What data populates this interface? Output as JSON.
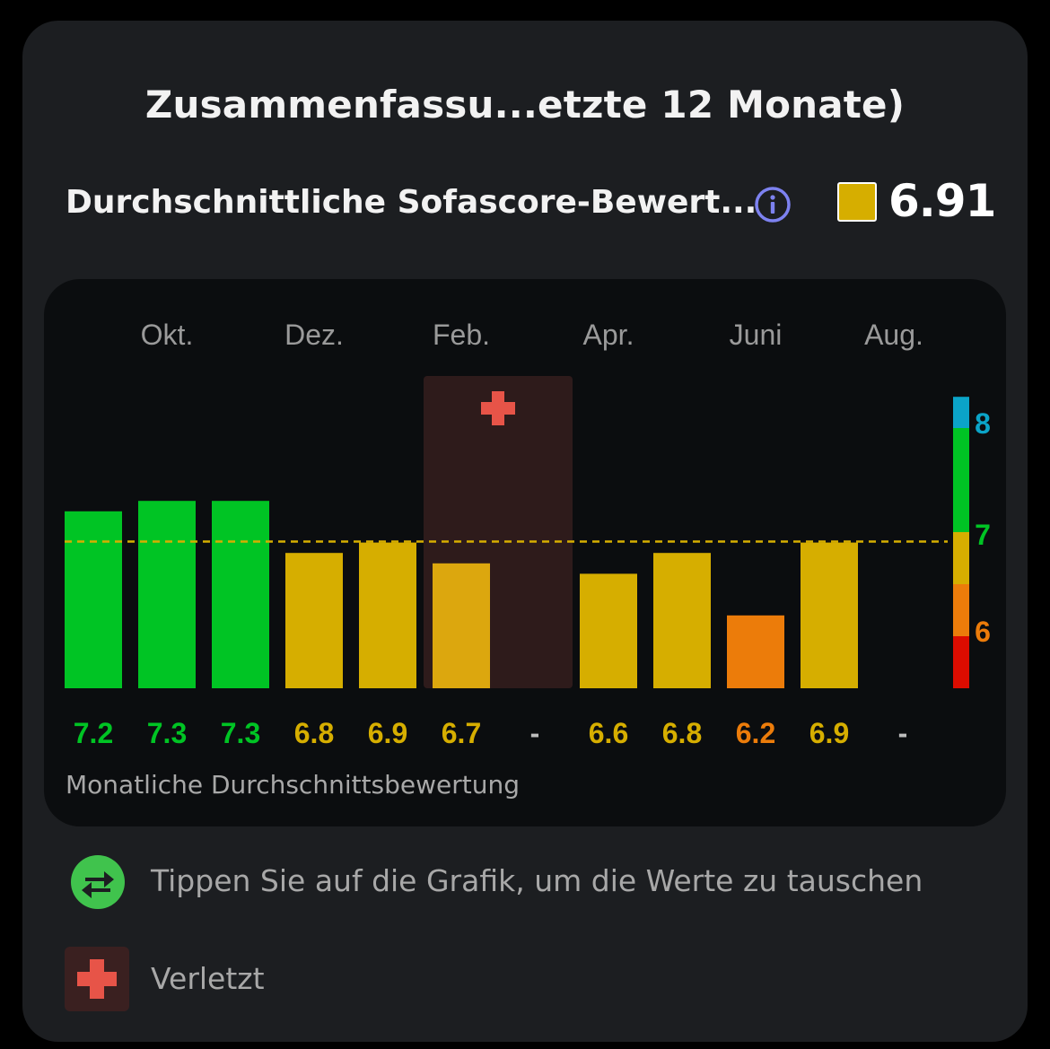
{
  "header": {
    "title": "Zusammenfassu...etzte 12 Monate)"
  },
  "summary": {
    "label": "Durchschnittliche Sofascore-Bewert...",
    "info_icon": "info-icon",
    "value": "6.91",
    "swatch_color": "#d6ae00"
  },
  "chart_data": {
    "type": "bar",
    "months": [
      "Okt.",
      "Dez.",
      "Feb.",
      "Apr.",
      "Juni",
      "Aug."
    ],
    "values": [
      7.2,
      7.3,
      7.3,
      6.8,
      6.9,
      6.7,
      null,
      6.6,
      6.8,
      6.2,
      6.9,
      null
    ],
    "labels": [
      "7.2",
      "7.3",
      "7.3",
      "6.8",
      "6.9",
      "6.7",
      "-",
      "6.6",
      "6.8",
      "6.2",
      "6.9",
      "-"
    ],
    "average": 6.91,
    "injured_months": [
      5,
      6
    ],
    "scale": {
      "ticks": [
        "8",
        "7",
        "6"
      ]
    },
    "colors": {
      "green": "#00c424",
      "yellow": "#d6ae00",
      "orange": "#ec7c0a",
      "red": "#dc0c00",
      "blue": "#0ba4c8",
      "injured_bar": "#dca70e",
      "injury_bg": "#2e1b1b",
      "average_line": "#d6ae00"
    },
    "caption": "Monatliche Durchschnittsbewertung"
  },
  "legend": {
    "swap_text": "Tippen Sie auf die Grafik, um die Werte zu tauschen",
    "swap_icon": "swap-arrows-icon",
    "injury_text": "Verletzt",
    "injury_icon": "medical-cross-icon",
    "swap_color": "#40c34d",
    "cross_color": "#e75448"
  }
}
